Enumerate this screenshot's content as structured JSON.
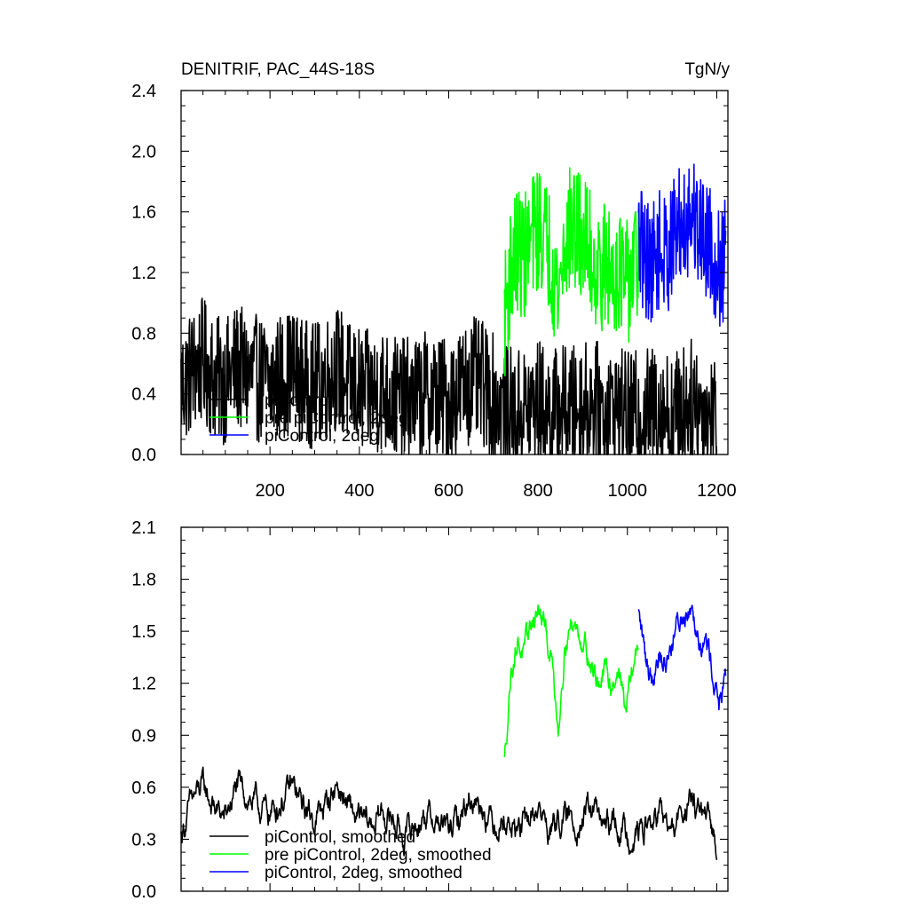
{
  "chart_data": [
    {
      "type": "line",
      "title": "DENITRIF, PAC_44S-18S",
      "units": "TgN/y",
      "xlim": [
        1,
        1225
      ],
      "ylim": [
        0.0,
        2.4
      ],
      "xticks": [
        200,
        400,
        600,
        800,
        1000,
        1200
      ],
      "xtick_labels": [
        "200",
        "400",
        "600",
        "800",
        "1000",
        "1200"
      ],
      "yticks": [
        0.0,
        0.4,
        0.8,
        1.2,
        1.6,
        2.0,
        2.4
      ],
      "ytick_labels": [
        "0.0",
        "0.4",
        "0.8",
        "1.2",
        "1.6",
        "2.0",
        "2.4"
      ],
      "legend_position": "bottom-left",
      "series": [
        {
          "name": "piControl",
          "color": "#000000",
          "x": [
            1,
            25,
            50,
            75,
            100,
            125,
            150,
            175,
            200,
            225,
            250,
            275,
            300,
            325,
            350,
            375,
            400,
            425,
            450,
            475,
            500,
            525,
            550,
            575,
            600,
            625,
            650,
            675,
            700,
            725,
            750,
            775,
            800,
            825,
            850,
            875,
            900,
            925,
            950,
            975,
            1000,
            1025,
            1050,
            1075,
            1100,
            1125,
            1150,
            1175,
            1200
          ],
          "values": [
            0.45,
            0.55,
            0.62,
            0.5,
            0.48,
            0.58,
            0.52,
            0.5,
            0.46,
            0.52,
            0.55,
            0.48,
            0.45,
            0.5,
            0.58,
            0.47,
            0.42,
            0.4,
            0.43,
            0.38,
            0.35,
            0.37,
            0.4,
            0.38,
            0.36,
            0.42,
            0.5,
            0.46,
            0.38,
            0.3,
            0.28,
            0.3,
            0.35,
            0.27,
            0.32,
            0.3,
            0.33,
            0.35,
            0.28,
            0.3,
            0.26,
            0.27,
            0.3,
            0.32,
            0.25,
            0.33,
            0.35,
            0.27,
            0.25
          ],
          "amplitude": 0.42
        },
        {
          "name": "pre piControl, 2deg",
          "color": "#00ff00",
          "x": [
            725,
            740,
            755,
            770,
            785,
            800,
            815,
            830,
            845,
            860,
            875,
            890,
            905,
            920,
            935,
            950,
            965,
            980,
            995,
            1010,
            1025
          ],
          "values": [
            0.9,
            1.25,
            1.35,
            1.3,
            1.42,
            1.5,
            1.45,
            1.3,
            1.05,
            1.4,
            1.5,
            1.45,
            1.42,
            1.3,
            1.2,
            1.25,
            1.2,
            1.25,
            1.1,
            1.2,
            1.3
          ],
          "amplitude": 0.42
        },
        {
          "name": "piControl, 2deg",
          "color": "#0000ff",
          "x": [
            1025,
            1040,
            1055,
            1070,
            1085,
            1100,
            1115,
            1130,
            1145,
            1160,
            1175,
            1190,
            1205,
            1220
          ],
          "values": [
            1.4,
            1.3,
            1.25,
            1.35,
            1.3,
            1.4,
            1.5,
            1.55,
            1.6,
            1.5,
            1.45,
            1.35,
            1.2,
            1.3
          ],
          "amplitude": 0.4
        }
      ]
    },
    {
      "type": "line",
      "title": "",
      "xlim": [
        1,
        1225
      ],
      "ylim": [
        0.0,
        2.1
      ],
      "xticks": [
        200,
        400,
        600,
        800,
        1000,
        1200
      ],
      "yticks": [
        0.0,
        0.3,
        0.6,
        0.9,
        1.2,
        1.5,
        1.8,
        2.1
      ],
      "ytick_labels": [
        "0.0",
        "0.3",
        "0.6",
        "0.9",
        "1.2",
        "1.5",
        "1.8",
        "2.1"
      ],
      "legend_position": "bottom-left",
      "series": [
        {
          "name": "piControl, smoothed",
          "color": "#000000",
          "x": [
            1,
            25,
            50,
            75,
            100,
            125,
            150,
            175,
            200,
            225,
            250,
            275,
            300,
            325,
            350,
            375,
            400,
            425,
            450,
            475,
            500,
            525,
            550,
            575,
            600,
            625,
            650,
            675,
            700,
            725,
            750,
            775,
            800,
            825,
            850,
            875,
            900,
            925,
            950,
            975,
            1000,
            1025,
            1050,
            1075,
            1100,
            1125,
            1150,
            1175,
            1200
          ],
          "values": [
            0.32,
            0.52,
            0.6,
            0.48,
            0.42,
            0.6,
            0.55,
            0.48,
            0.45,
            0.52,
            0.6,
            0.48,
            0.42,
            0.5,
            0.62,
            0.48,
            0.4,
            0.38,
            0.45,
            0.42,
            0.32,
            0.38,
            0.45,
            0.4,
            0.35,
            0.42,
            0.55,
            0.5,
            0.4,
            0.42,
            0.35,
            0.38,
            0.48,
            0.35,
            0.42,
            0.4,
            0.42,
            0.48,
            0.35,
            0.4,
            0.32,
            0.35,
            0.38,
            0.45,
            0.32,
            0.48,
            0.5,
            0.4,
            0.28
          ],
          "amplitude": 0.11
        },
        {
          "name": "pre piControl, 2deg, smoothed",
          "color": "#00ff00",
          "x": [
            725,
            740,
            755,
            770,
            785,
            800,
            815,
            830,
            845,
            860,
            875,
            890,
            905,
            920,
            935,
            950,
            965,
            980,
            995,
            1010,
            1025
          ],
          "values": [
            0.75,
            1.3,
            1.45,
            1.35,
            1.55,
            1.62,
            1.5,
            1.35,
            0.95,
            1.45,
            1.55,
            1.5,
            1.45,
            1.3,
            1.2,
            1.25,
            1.2,
            1.3,
            1.05,
            1.25,
            1.45
          ],
          "amplitude": 0.1
        },
        {
          "name": "piControl, 2deg, smoothed",
          "color": "#0000ff",
          "x": [
            1025,
            1040,
            1055,
            1070,
            1085,
            1100,
            1115,
            1130,
            1145,
            1160,
            1175,
            1190,
            1205,
            1220
          ],
          "values": [
            1.6,
            1.35,
            1.25,
            1.4,
            1.3,
            1.45,
            1.55,
            1.62,
            1.68,
            1.5,
            1.45,
            1.3,
            1.1,
            1.15
          ],
          "amplitude": 0.11
        }
      ]
    }
  ]
}
